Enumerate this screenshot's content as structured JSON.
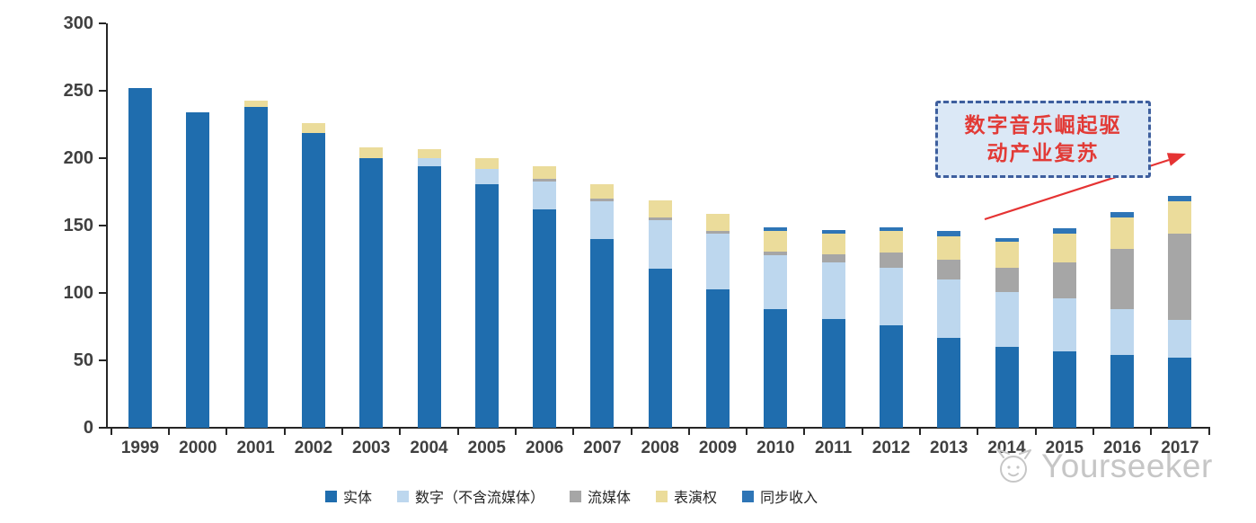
{
  "colors": {
    "annotation-fill": "#DBE8F6",
    "annotation-border": "#3E5F9E",
    "annotation-text": "#E23A36",
    "arrow": "#E53333",
    "watermark": "#C6C6C6",
    "axis": "#262626",
    "axis-text": "#404040"
  },
  "annotation": {
    "line1": "数字音乐崛起驱",
    "line2": "动产业复苏",
    "full_text": "数字音乐崛起驱动产业复苏"
  },
  "watermark": {
    "brand": "Yourseeker",
    "icon": "cat-face-logo-icon"
  },
  "chart_data": {
    "type": "bar",
    "stacked": true,
    "title": "",
    "xlabel": "",
    "ylabel": "",
    "ylim": [
      0,
      300
    ],
    "y_ticks": [
      0,
      50,
      100,
      150,
      200,
      250,
      300
    ],
    "grid": false,
    "legend_position": "bottom",
    "categories": [
      "1999",
      "2000",
      "2001",
      "2002",
      "2003",
      "2004",
      "2005",
      "2006",
      "2007",
      "2008",
      "2009",
      "2010",
      "2011",
      "2012",
      "2013",
      "2014",
      "2015",
      "2016",
      "2017"
    ],
    "series": [
      {
        "name": "实体",
        "color": "#1F6DAE",
        "values": [
          252,
          234,
          238,
          219,
          200,
          194,
          181,
          162,
          140,
          118,
          103,
          88,
          81,
          76,
          67,
          60,
          57,
          54,
          52
        ]
      },
      {
        "name": "数字（不含流媒体）",
        "color": "#BDD7EE",
        "values": [
          0,
          0,
          0,
          0,
          0,
          6,
          11,
          21,
          28,
          36,
          41,
          40,
          42,
          43,
          43,
          41,
          39,
          34,
          28
        ]
      },
      {
        "name": "流媒体",
        "color": "#A6A6A6",
        "values": [
          0,
          0,
          0,
          0,
          0,
          0,
          0,
          2,
          2,
          2,
          2,
          3,
          6,
          11,
          15,
          18,
          27,
          45,
          64
        ]
      },
      {
        "name": "表演权",
        "color": "#EBDC9B",
        "values": [
          0,
          0,
          5,
          7,
          8,
          7,
          8,
          9,
          11,
          13,
          13,
          15,
          15,
          16,
          17,
          19,
          21,
          23,
          24
        ]
      },
      {
        "name": "同步收入",
        "color": "#2E75B6",
        "values": [
          0,
          0,
          0,
          0,
          0,
          0,
          0,
          0,
          0,
          0,
          0,
          3,
          3,
          3,
          4,
          3,
          4,
          4,
          4
        ]
      }
    ],
    "totals": [
      252,
      234,
      243,
      226,
      208,
      207,
      200,
      194,
      181,
      169,
      159,
      149,
      147,
      149,
      146,
      141,
      148,
      160,
      172
    ]
  }
}
